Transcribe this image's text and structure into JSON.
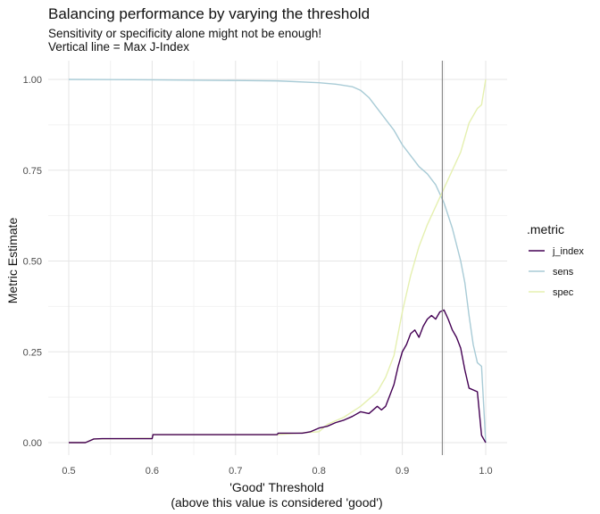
{
  "chart_data": {
    "type": "line",
    "title": "Balancing performance by varying the threshold",
    "subtitle_lines": [
      "Sensitivity or specificity alone might not be enough!",
      "Vertical line = Max J-Index"
    ],
    "xlabel_lines": [
      "'Good' Threshold",
      "(above this value is considered 'good')"
    ],
    "ylabel": "Metric Estimate",
    "xlim": [
      0.5,
      1.0
    ],
    "ylim": [
      0,
      1
    ],
    "x_ticks": [
      0.5,
      0.6,
      0.7,
      0.8,
      0.9,
      1.0
    ],
    "x_tick_labels": [
      "0.5",
      "0.6",
      "0.7",
      "0.8",
      "0.9",
      "1.0"
    ],
    "y_ticks": [
      0,
      0.25,
      0.5,
      0.75,
      1.0
    ],
    "y_tick_labels": [
      "0.00",
      "0.25",
      "0.50",
      "0.75",
      "1.00"
    ],
    "vline_x": 0.948,
    "legend": {
      "title": ".metric",
      "position": "right"
    },
    "series": [
      {
        "name": "j_index",
        "color": "#440154",
        "points": [
          [
            0.5,
            0.0
          ],
          [
            0.52,
            0.0
          ],
          [
            0.525,
            0.005
          ],
          [
            0.53,
            0.01
          ],
          [
            0.54,
            0.011
          ],
          [
            0.6,
            0.011
          ],
          [
            0.601,
            0.022
          ],
          [
            0.75,
            0.022
          ],
          [
            0.751,
            0.026
          ],
          [
            0.78,
            0.026
          ],
          [
            0.79,
            0.03
          ],
          [
            0.8,
            0.04
          ],
          [
            0.81,
            0.045
          ],
          [
            0.82,
            0.055
          ],
          [
            0.83,
            0.062
          ],
          [
            0.84,
            0.072
          ],
          [
            0.85,
            0.085
          ],
          [
            0.86,
            0.08
          ],
          [
            0.87,
            0.1
          ],
          [
            0.875,
            0.09
          ],
          [
            0.88,
            0.1
          ],
          [
            0.885,
            0.13
          ],
          [
            0.89,
            0.16
          ],
          [
            0.895,
            0.21
          ],
          [
            0.9,
            0.25
          ],
          [
            0.905,
            0.27
          ],
          [
            0.91,
            0.3
          ],
          [
            0.915,
            0.31
          ],
          [
            0.92,
            0.29
          ],
          [
            0.925,
            0.32
          ],
          [
            0.93,
            0.34
          ],
          [
            0.935,
            0.35
          ],
          [
            0.94,
            0.34
          ],
          [
            0.945,
            0.36
          ],
          [
            0.95,
            0.365
          ],
          [
            0.955,
            0.34
          ],
          [
            0.96,
            0.31
          ],
          [
            0.965,
            0.29
          ],
          [
            0.97,
            0.26
          ],
          [
            0.975,
            0.2
          ],
          [
            0.98,
            0.15
          ],
          [
            0.99,
            0.14
          ],
          [
            0.995,
            0.02
          ],
          [
            1.0,
            0.0
          ]
        ]
      },
      {
        "name": "sens",
        "color": "#a8cbd6",
        "points": [
          [
            0.5,
            1.0
          ],
          [
            0.6,
            0.999
          ],
          [
            0.7,
            0.997
          ],
          [
            0.75,
            0.996
          ],
          [
            0.8,
            0.991
          ],
          [
            0.82,
            0.987
          ],
          [
            0.84,
            0.98
          ],
          [
            0.85,
            0.97
          ],
          [
            0.86,
            0.95
          ],
          [
            0.87,
            0.92
          ],
          [
            0.88,
            0.89
          ],
          [
            0.89,
            0.86
          ],
          [
            0.9,
            0.82
          ],
          [
            0.91,
            0.79
          ],
          [
            0.92,
            0.76
          ],
          [
            0.93,
            0.74
          ],
          [
            0.94,
            0.71
          ],
          [
            0.95,
            0.66
          ],
          [
            0.96,
            0.59
          ],
          [
            0.97,
            0.5
          ],
          [
            0.975,
            0.44
          ],
          [
            0.98,
            0.35
          ],
          [
            0.985,
            0.27
          ],
          [
            0.99,
            0.22
          ],
          [
            0.995,
            0.21
          ],
          [
            1.0,
            0.0
          ]
        ]
      },
      {
        "name": "spec",
        "color": "#e5f0b0",
        "points": [
          [
            0.5,
            0.0
          ],
          [
            0.52,
            0.0
          ],
          [
            0.53,
            0.01
          ],
          [
            0.6,
            0.012
          ],
          [
            0.601,
            0.022
          ],
          [
            0.75,
            0.022
          ],
          [
            0.8,
            0.03
          ],
          [
            0.81,
            0.05
          ],
          [
            0.83,
            0.07
          ],
          [
            0.85,
            0.1
          ],
          [
            0.86,
            0.12
          ],
          [
            0.87,
            0.14
          ],
          [
            0.88,
            0.18
          ],
          [
            0.89,
            0.24
          ],
          [
            0.9,
            0.36
          ],
          [
            0.91,
            0.46
          ],
          [
            0.92,
            0.54
          ],
          [
            0.93,
            0.6
          ],
          [
            0.94,
            0.65
          ],
          [
            0.95,
            0.7
          ],
          [
            0.96,
            0.75
          ],
          [
            0.97,
            0.8
          ],
          [
            0.975,
            0.84
          ],
          [
            0.98,
            0.88
          ],
          [
            0.985,
            0.9
          ],
          [
            0.99,
            0.92
          ],
          [
            0.995,
            0.93
          ],
          [
            1.0,
            1.0
          ]
        ]
      }
    ]
  }
}
